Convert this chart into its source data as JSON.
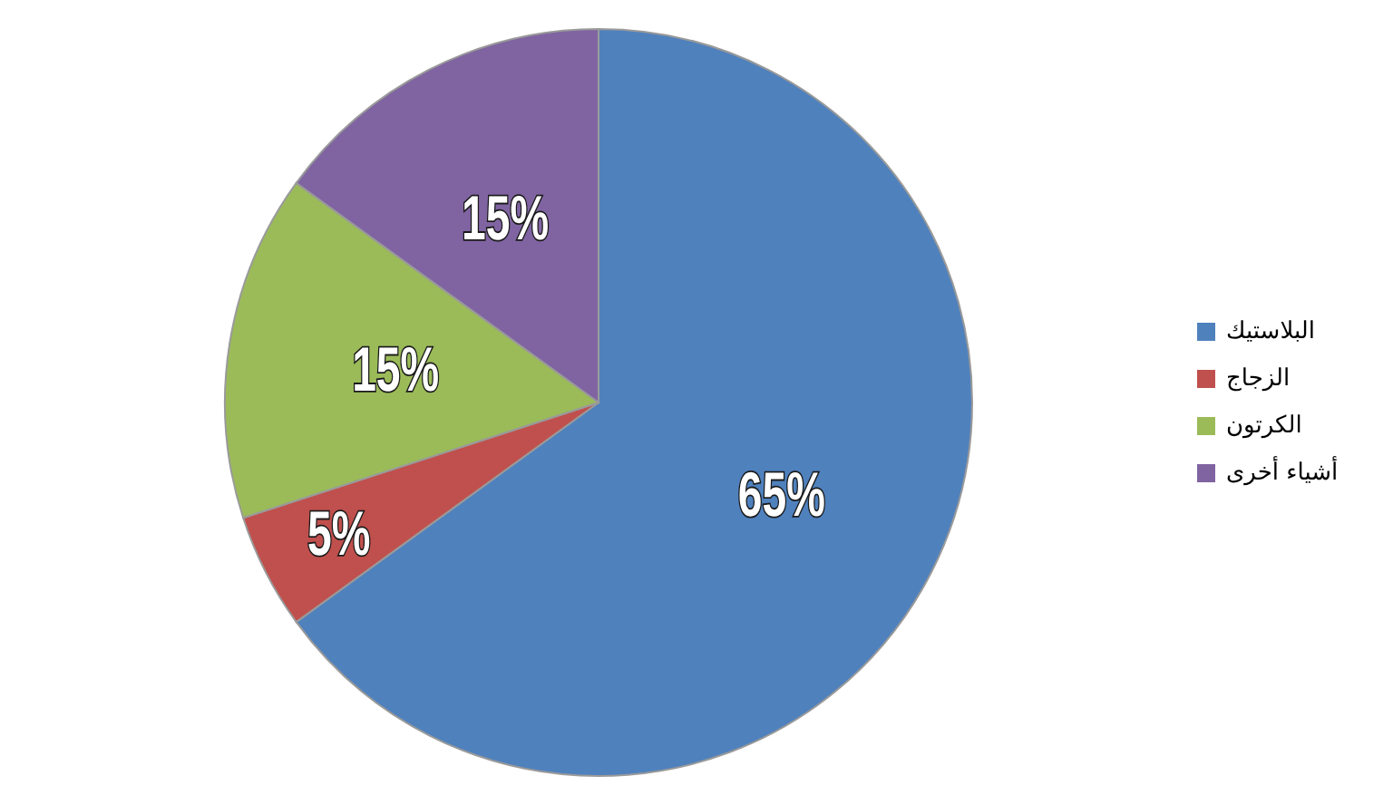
{
  "chart_data": {
    "type": "pie",
    "categories": [
      "البلاستيك",
      "الزجاج",
      "الكرتون",
      "أشياء أخرى"
    ],
    "values": [
      65,
      5,
      15,
      15
    ],
    "colors": [
      "#4f81bd",
      "#c0504d",
      "#9bbb59",
      "#8064a2"
    ],
    "value_labels": [
      "65%",
      "5%",
      "15%",
      "15%"
    ],
    "legend": "right"
  }
}
